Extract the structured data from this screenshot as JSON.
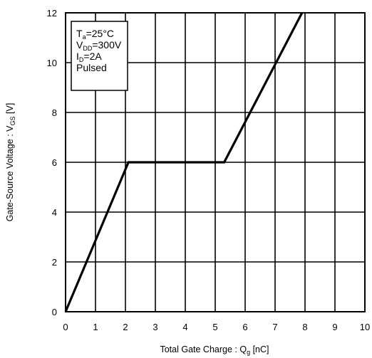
{
  "chart_data": {
    "type": "line",
    "xlabel": {
      "main": "Total Gate Charge : Q",
      "sub": "g",
      "unit": "  [nC]"
    },
    "ylabel": {
      "main": "Gate-Source Voltage : V",
      "sub": "GS",
      "unit": " [V]"
    },
    "xlim": [
      0,
      10
    ],
    "ylim": [
      0,
      12
    ],
    "x_ticks": [
      "0",
      "1",
      "2",
      "3",
      "4",
      "5",
      "6",
      "7",
      "8",
      "9",
      "10"
    ],
    "y_ticks": [
      "0",
      "2",
      "4",
      "6",
      "8",
      "10",
      "12"
    ],
    "grid": true,
    "series": [
      {
        "x": [
          0,
          2.1,
          5.3,
          7.9
        ],
        "y": [
          0,
          6,
          6,
          12
        ]
      }
    ],
    "conditions": [
      {
        "main": "T",
        "sub": "a",
        "rest": "=25°C"
      },
      {
        "main": "V",
        "sub": "DD",
        "rest": "=300V"
      },
      {
        "main": "I",
        "sub": "D",
        "rest": "=2A"
      },
      {
        "main": "Pulsed",
        "sub": "",
        "rest": ""
      }
    ],
    "line_color": "#000000",
    "grid_color": "#000000"
  }
}
